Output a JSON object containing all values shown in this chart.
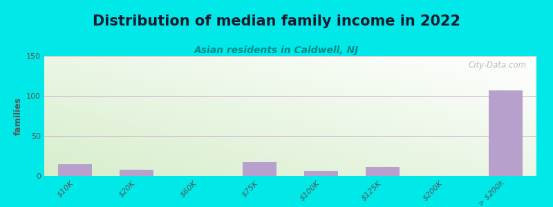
{
  "title": "Distribution of median family income in 2022",
  "subtitle": "Asian residents in Caldwell, NJ",
  "ylabel": "families",
  "background_outer": "#00e8e8",
  "bar_color": "#b8a0cc",
  "watermark": "City-Data.com",
  "categories": [
    "$10K",
    "$20K",
    "$60K",
    "$75K",
    "$100K",
    "$125K",
    "$200K",
    "> $200k"
  ],
  "values": [
    15,
    8,
    0,
    17,
    6,
    11,
    0,
    107
  ],
  "ylim": [
    0,
    150
  ],
  "yticks": [
    0,
    50,
    100,
    150
  ],
  "title_fontsize": 15,
  "subtitle_fontsize": 10,
  "ylabel_fontsize": 9,
  "tick_fontsize": 8,
  "gradient_top": "#f8f8f8",
  "gradient_bottom": "#d8eecc"
}
